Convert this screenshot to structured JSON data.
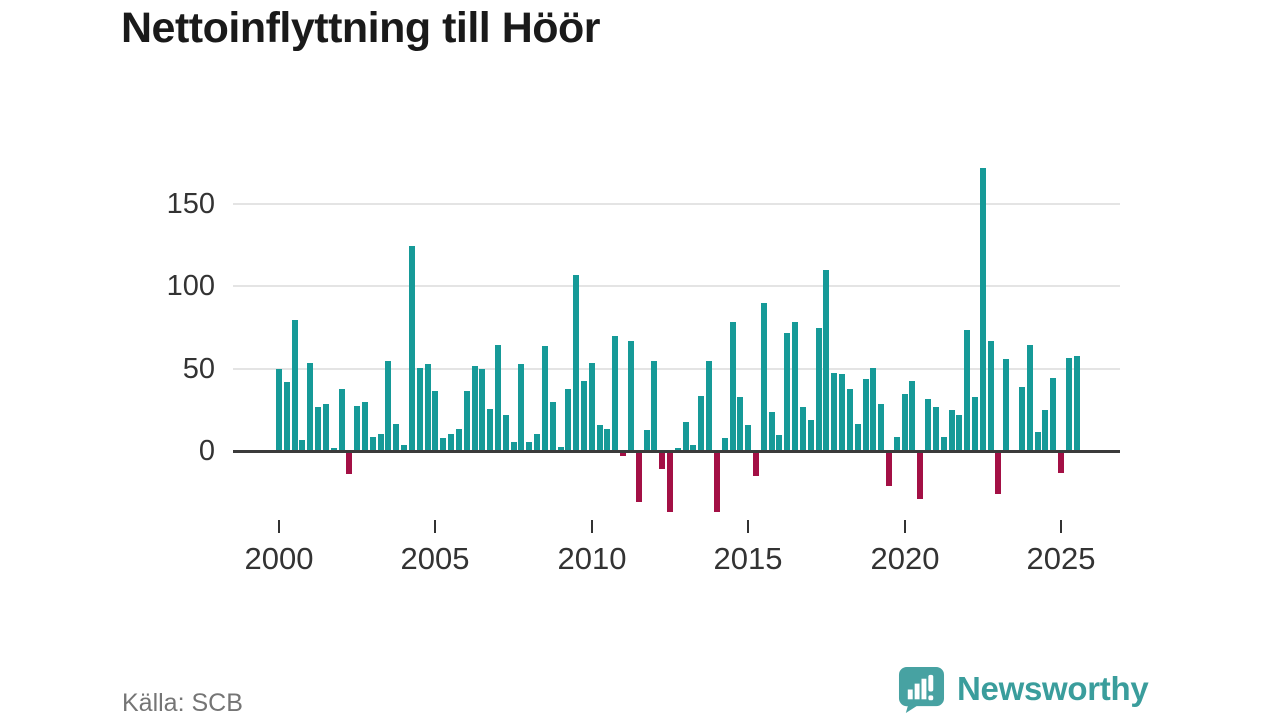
{
  "title": "Nettoinflyttning till Höör",
  "source": "Källa: SCB",
  "brand": {
    "name": "Newsworthy",
    "icon": "bar-chart-speech-bubble-icon"
  },
  "colors": {
    "positive": "#169a98",
    "negative": "#a31045",
    "grid": "#e4e4e4",
    "axis": "#3b3b3b",
    "tick_text": "#333333",
    "title_text": "#1a1a1a",
    "source_text": "#757575",
    "brand_teal": "#3a9d9c",
    "logo_bubble": "#47a2a2"
  },
  "chart_data": {
    "type": "bar",
    "title": "Nettoinflyttning till Höör",
    "frequency": "quarterly",
    "start_period": "2000Q1",
    "end_period": "2025Q3",
    "x_tick_labels": [
      "2000",
      "2005",
      "2010",
      "2015",
      "2020",
      "2025"
    ],
    "x_tick_quarter_indices": [
      0,
      20,
      40,
      60,
      80,
      100
    ],
    "y_ticks": [
      0,
      50,
      100,
      150
    ],
    "ylim": [
      -42,
      183
    ],
    "grid": "horizontal",
    "legend": null,
    "values": [
      49,
      41,
      79,
      6,
      53,
      26,
      28,
      1,
      37,
      -13,
      27,
      29,
      8,
      10,
      54,
      16,
      3,
      124,
      50,
      52,
      36,
      7,
      10,
      13,
      36,
      51,
      49,
      25,
      64,
      21,
      5,
      52,
      5,
      10,
      63,
      29,
      2,
      37,
      106,
      42,
      53,
      15,
      13,
      69,
      -2,
      66,
      -30,
      12,
      54,
      -10,
      -36,
      1,
      17,
      3,
      33,
      54,
      -36,
      7,
      78,
      32,
      15,
      -14,
      89,
      23,
      9,
      71,
      78,
      26,
      18,
      74,
      109,
      47,
      46,
      37,
      16,
      43,
      50,
      28,
      -20,
      8,
      34,
      42,
      -28,
      31,
      26,
      8,
      24,
      21,
      73,
      32,
      171,
      66,
      -25,
      55,
      0,
      38,
      64,
      11,
      24,
      44,
      -12,
      56,
      57
    ]
  }
}
